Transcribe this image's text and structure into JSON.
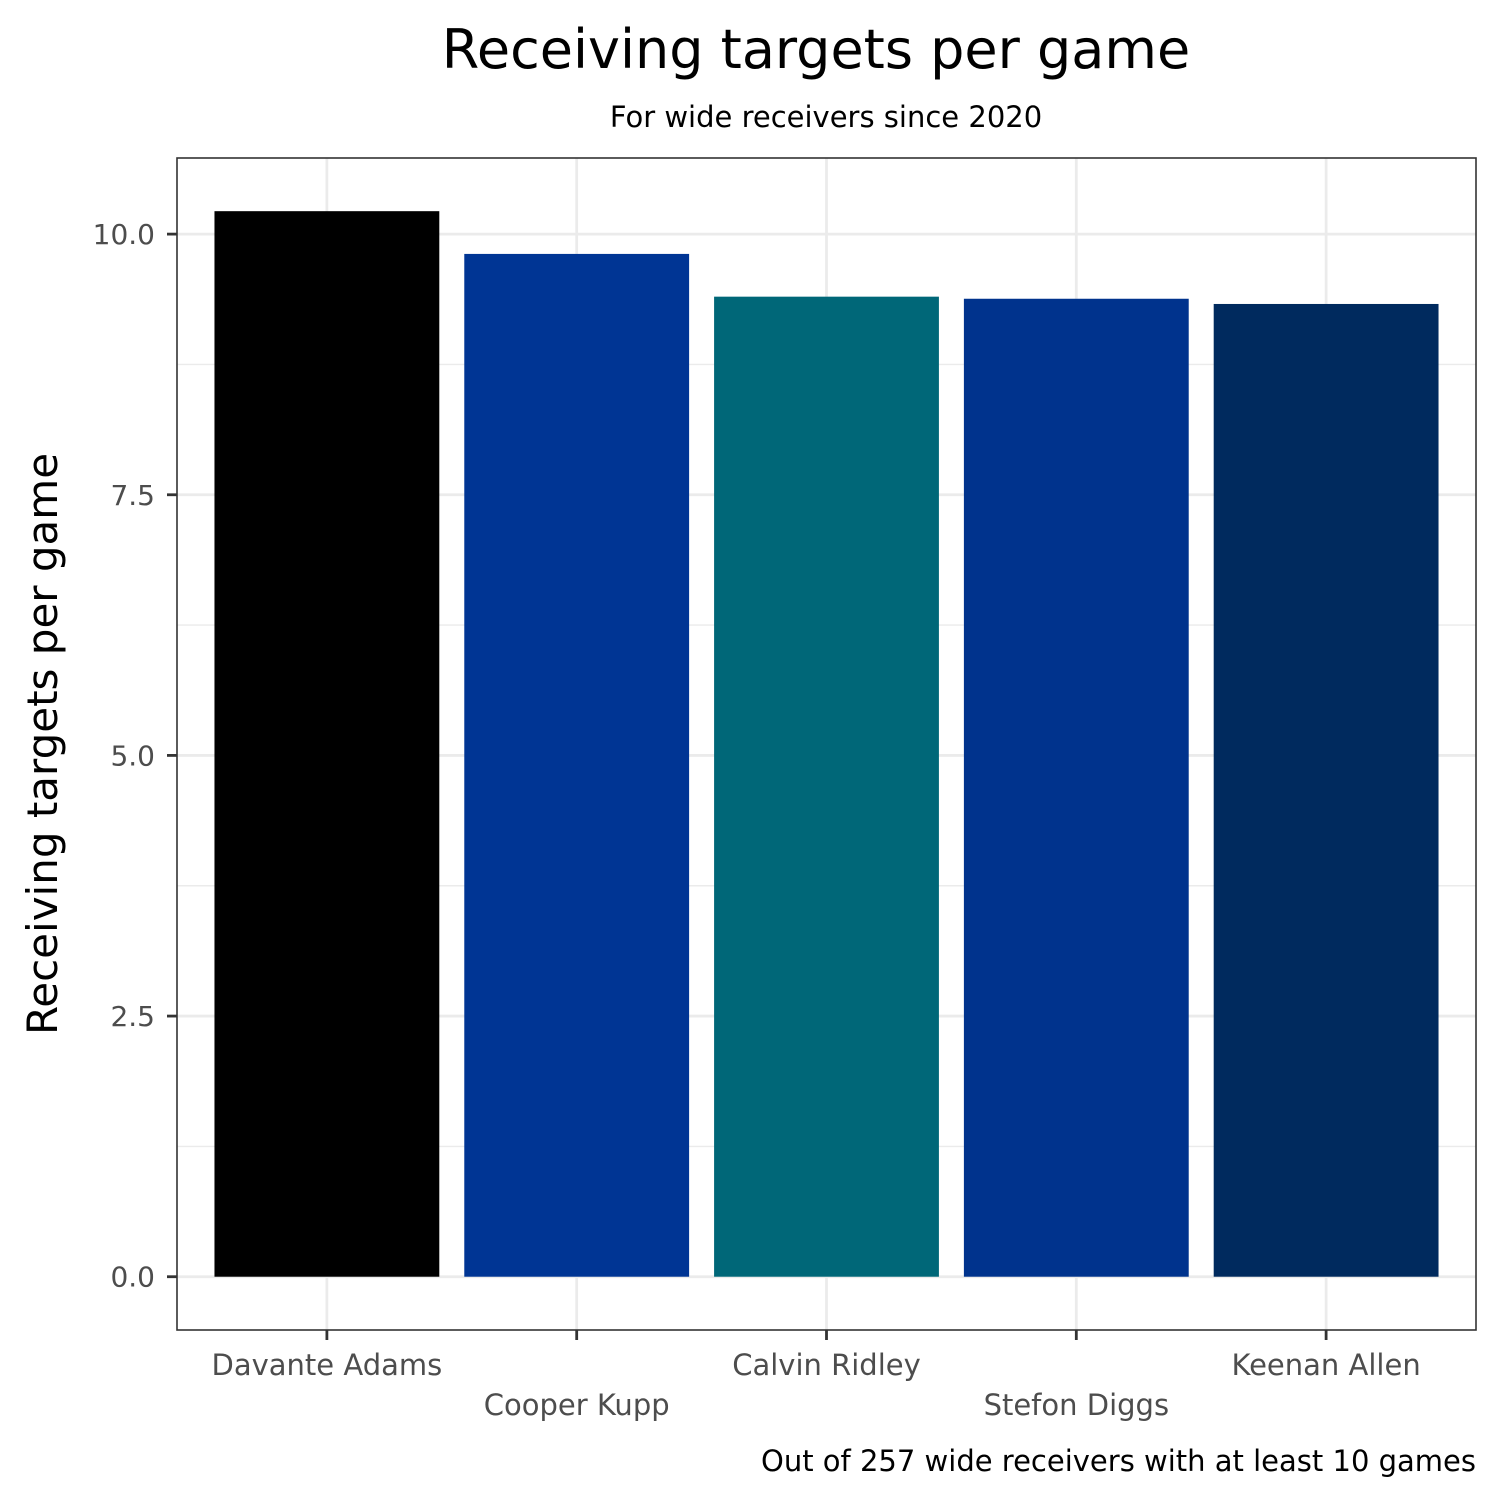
{
  "chart_data": {
    "type": "bar",
    "title": "Receiving targets per game",
    "subtitle": "For wide receivers since 2020",
    "xlabel": "",
    "ylabel": "Receiving targets per game",
    "caption": "Out of 257 wide receivers with at least 10 games",
    "categories": [
      "Davante Adams",
      "Cooper Kupp",
      "Calvin Ridley",
      "Stefon Diggs",
      "Keenan Allen"
    ],
    "values": [
      10.22,
      9.81,
      9.4,
      9.38,
      9.33
    ],
    "colors": [
      "#000000",
      "#003594",
      "#006778",
      "#00338D",
      "#002A5E"
    ],
    "yticks": [
      0.0,
      2.5,
      5.0,
      7.5,
      10.0
    ],
    "ytick_labels": [
      "0.0",
      "2.5",
      "5.0",
      "7.5",
      "10.0"
    ],
    "ylim": [
      -0.511,
      10.73
    ],
    "grid": true,
    "legend": "none",
    "theme": "bw"
  }
}
